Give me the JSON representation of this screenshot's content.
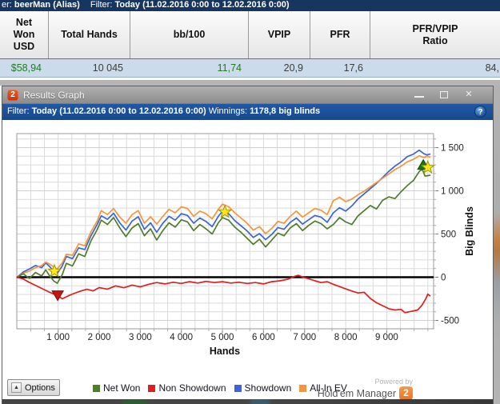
{
  "app_bar": {
    "prefix": "er:",
    "player": "beerMan (Alias)",
    "filter_label": "Filter:",
    "filter_value": "Today (11.02.2016 0:00 to 12.02.2016 0:00)"
  },
  "stats_table": {
    "headers": [
      "Net\nWon\nUSD",
      "Total Hands",
      "bb/100",
      "VPIP",
      "PFR",
      "PFR/VPIP\nRatio"
    ],
    "values": [
      {
        "text": "$58,94",
        "color": "#1e7d1e"
      },
      {
        "text": "10 045",
        "color": "#3c3c3c"
      },
      {
        "text": "11,74",
        "color": "#1e7d1e"
      },
      {
        "text": "20,9",
        "color": "#3c3c3c"
      },
      {
        "text": "17,6",
        "color": "#3c3c3c"
      },
      {
        "text": "84,",
        "color": "#3c3c3c"
      }
    ]
  },
  "window": {
    "icon_text": "2",
    "title": "Results Graph",
    "controls": {
      "minimize": "",
      "maximize": "",
      "close": "✕"
    },
    "filter_bar": {
      "label": "Filter:",
      "value": "Today (11.02.2016 0:00 to 12.02.2016 0:00)",
      "winnings_label": "Winnings:",
      "winnings_value": "1178,8 big blinds",
      "help": "?"
    }
  },
  "chart_data": {
    "type": "line",
    "xlabel": "Hands",
    "ylabel": "Big Blinds",
    "xlim": [
      0,
      10140
    ],
    "ylim": [
      -600,
      1660
    ],
    "x_ticks": [
      1000,
      2000,
      3000,
      4000,
      5000,
      6000,
      7000,
      8000,
      9000
    ],
    "y_ticks": [
      -500,
      0,
      500,
      1000,
      1500
    ],
    "grid": true,
    "legend_position": "bottom",
    "zero_line": true,
    "series": [
      {
        "name": "Showdown",
        "color": "#3a64d9",
        "points": [
          [
            0,
            0
          ],
          [
            150,
            60
          ],
          [
            300,
            95
          ],
          [
            450,
            135
          ],
          [
            600,
            110
          ],
          [
            700,
            165
          ],
          [
            800,
            120
          ],
          [
            900,
            65
          ],
          [
            980,
            45
          ],
          [
            1100,
            130
          ],
          [
            1200,
            240
          ],
          [
            1350,
            215
          ],
          [
            1500,
            340
          ],
          [
            1650,
            320
          ],
          [
            1800,
            480
          ],
          [
            1950,
            610
          ],
          [
            2050,
            710
          ],
          [
            2200,
            670
          ],
          [
            2350,
            740
          ],
          [
            2500,
            630
          ],
          [
            2650,
            545
          ],
          [
            2800,
            650
          ],
          [
            2950,
            700
          ],
          [
            3100,
            555
          ],
          [
            3250,
            630
          ],
          [
            3400,
            520
          ],
          [
            3550,
            625
          ],
          [
            3700,
            705
          ],
          [
            3850,
            660
          ],
          [
            4000,
            735
          ],
          [
            4150,
            715
          ],
          [
            4300,
            625
          ],
          [
            4450,
            685
          ],
          [
            4600,
            645
          ],
          [
            4750,
            585
          ],
          [
            4900,
            705
          ],
          [
            5000,
            765
          ],
          [
            5150,
            735
          ],
          [
            5300,
            655
          ],
          [
            5450,
            595
          ],
          [
            5600,
            535
          ],
          [
            5750,
            460
          ],
          [
            5900,
            505
          ],
          [
            6050,
            435
          ],
          [
            6200,
            495
          ],
          [
            6350,
            575
          ],
          [
            6500,
            555
          ],
          [
            6650,
            635
          ],
          [
            6800,
            685
          ],
          [
            6950,
            615
          ],
          [
            7100,
            665
          ],
          [
            7250,
            715
          ],
          [
            7400,
            695
          ],
          [
            7550,
            635
          ],
          [
            7700,
            745
          ],
          [
            7850,
            805
          ],
          [
            8000,
            765
          ],
          [
            8150,
            825
          ],
          [
            8300,
            905
          ],
          [
            8450,
            965
          ],
          [
            8600,
            1025
          ],
          [
            8750,
            1085
          ],
          [
            8900,
            1155
          ],
          [
            9050,
            1225
          ],
          [
            9200,
            1285
          ],
          [
            9350,
            1335
          ],
          [
            9500,
            1395
          ],
          [
            9650,
            1425
          ],
          [
            9790,
            1470
          ],
          [
            9900,
            1430
          ],
          [
            9980,
            1415
          ],
          [
            10050,
            1425
          ]
        ]
      },
      {
        "name": "All-In EV",
        "color": "#f5953a",
        "points": [
          [
            0,
            0
          ],
          [
            150,
            45
          ],
          [
            300,
            70
          ],
          [
            450,
            110
          ],
          [
            600,
            135
          ],
          [
            700,
            175
          ],
          [
            800,
            150
          ],
          [
            900,
            115
          ],
          [
            980,
            95
          ],
          [
            1100,
            165
          ],
          [
            1200,
            265
          ],
          [
            1350,
            255
          ],
          [
            1500,
            385
          ],
          [
            1650,
            365
          ],
          [
            1800,
            525
          ],
          [
            1950,
            650
          ],
          [
            2050,
            770
          ],
          [
            2200,
            725
          ],
          [
            2350,
            795
          ],
          [
            2500,
            695
          ],
          [
            2650,
            625
          ],
          [
            2800,
            725
          ],
          [
            2950,
            770
          ],
          [
            3100,
            625
          ],
          [
            3250,
            700
          ],
          [
            3400,
            615
          ],
          [
            3550,
            705
          ],
          [
            3700,
            785
          ],
          [
            3850,
            745
          ],
          [
            4000,
            815
          ],
          [
            4150,
            795
          ],
          [
            4300,
            705
          ],
          [
            4450,
            765
          ],
          [
            4600,
            735
          ],
          [
            4750,
            675
          ],
          [
            4900,
            785
          ],
          [
            5000,
            845
          ],
          [
            5150,
            815
          ],
          [
            5300,
            745
          ],
          [
            5450,
            685
          ],
          [
            5600,
            625
          ],
          [
            5750,
            545
          ],
          [
            5900,
            585
          ],
          [
            6050,
            505
          ],
          [
            6200,
            565
          ],
          [
            6350,
            645
          ],
          [
            6500,
            625
          ],
          [
            6650,
            705
          ],
          [
            6800,
            765
          ],
          [
            6950,
            695
          ],
          [
            7100,
            745
          ],
          [
            7250,
            795
          ],
          [
            7400,
            775
          ],
          [
            7550,
            725
          ],
          [
            7700,
            885
          ],
          [
            7850,
            925
          ],
          [
            8000,
            875
          ],
          [
            8150,
            905
          ],
          [
            8300,
            955
          ],
          [
            8450,
            995
          ],
          [
            8600,
            1045
          ],
          [
            8750,
            1095
          ],
          [
            8900,
            1145
          ],
          [
            9050,
            1195
          ],
          [
            9200,
            1245
          ],
          [
            9350,
            1285
          ],
          [
            9500,
            1335
          ],
          [
            9650,
            1365
          ],
          [
            9790,
            1405
          ],
          [
            9900,
            1385
          ],
          [
            9980,
            1400
          ],
          [
            10050,
            1390
          ]
        ]
      },
      {
        "name": "Net Won",
        "color": "#4f7d2b",
        "points": [
          [
            0,
            0
          ],
          [
            150,
            40
          ],
          [
            300,
            -15
          ],
          [
            450,
            55
          ],
          [
            600,
            15
          ],
          [
            700,
            85
          ],
          [
            800,
            10
          ],
          [
            900,
            -45
          ],
          [
            980,
            -70
          ],
          [
            1100,
            30
          ],
          [
            1200,
            160
          ],
          [
            1350,
            130
          ],
          [
            1500,
            270
          ],
          [
            1650,
            240
          ],
          [
            1800,
            420
          ],
          [
            1950,
            550
          ],
          [
            2050,
            660
          ],
          [
            2200,
            610
          ],
          [
            2350,
            690
          ],
          [
            2500,
            570
          ],
          [
            2650,
            470
          ],
          [
            2800,
            570
          ],
          [
            2950,
            620
          ],
          [
            3100,
            480
          ],
          [
            3250,
            560
          ],
          [
            3400,
            430
          ],
          [
            3550,
            540
          ],
          [
            3700,
            630
          ],
          [
            3850,
            580
          ],
          [
            4000,
            665
          ],
          [
            4150,
            640
          ],
          [
            4300,
            540
          ],
          [
            4450,
            610
          ],
          [
            4600,
            560
          ],
          [
            4750,
            500
          ],
          [
            4900,
            630
          ],
          [
            5000,
            690
          ],
          [
            5150,
            660
          ],
          [
            5300,
            580
          ],
          [
            5450,
            520
          ],
          [
            5600,
            450
          ],
          [
            5750,
            380
          ],
          [
            5900,
            440
          ],
          [
            6050,
            350
          ],
          [
            6200,
            430
          ],
          [
            6350,
            510
          ],
          [
            6500,
            480
          ],
          [
            6650,
            570
          ],
          [
            6800,
            620
          ],
          [
            6950,
            540
          ],
          [
            7100,
            600
          ],
          [
            7250,
            650
          ],
          [
            7400,
            620
          ],
          [
            7550,
            560
          ],
          [
            7700,
            610
          ],
          [
            7850,
            690
          ],
          [
            8000,
            640
          ],
          [
            8150,
            610
          ],
          [
            8300,
            710
          ],
          [
            8450,
            770
          ],
          [
            8600,
            830
          ],
          [
            8750,
            790
          ],
          [
            8900,
            890
          ],
          [
            9050,
            930
          ],
          [
            9200,
            910
          ],
          [
            9350,
            990
          ],
          [
            9500,
            1060
          ],
          [
            9650,
            1120
          ],
          [
            9800,
            1230
          ],
          [
            9870,
            1245
          ],
          [
            9930,
            1170
          ],
          [
            10050,
            1180
          ]
        ]
      },
      {
        "name": "Non Showdown",
        "color": "#e11d1d",
        "points": [
          [
            0,
            0
          ],
          [
            150,
            -20
          ],
          [
            300,
            -60
          ],
          [
            450,
            -95
          ],
          [
            600,
            -130
          ],
          [
            750,
            -165
          ],
          [
            900,
            -195
          ],
          [
            990,
            -210
          ],
          [
            1100,
            -250
          ],
          [
            1250,
            -215
          ],
          [
            1400,
            -185
          ],
          [
            1550,
            -160
          ],
          [
            1700,
            -140
          ],
          [
            1850,
            -158
          ],
          [
            2000,
            -120
          ],
          [
            2200,
            -138
          ],
          [
            2400,
            -100
          ],
          [
            2600,
            -122
          ],
          [
            2800,
            -92
          ],
          [
            3000,
            -112
          ],
          [
            3200,
            -82
          ],
          [
            3400,
            -62
          ],
          [
            3600,
            -78
          ],
          [
            3800,
            -58
          ],
          [
            4000,
            -72
          ],
          [
            4200,
            -52
          ],
          [
            4400,
            -68
          ],
          [
            4600,
            -48
          ],
          [
            4800,
            -62
          ],
          [
            5000,
            -52
          ],
          [
            5200,
            -68
          ],
          [
            5400,
            -58
          ],
          [
            5600,
            -72
          ],
          [
            5800,
            -62
          ],
          [
            6000,
            -78
          ],
          [
            6200,
            -52
          ],
          [
            6400,
            -42
          ],
          [
            6600,
            -22
          ],
          [
            6750,
            8
          ],
          [
            6850,
            22
          ],
          [
            6950,
            2
          ],
          [
            7100,
            -18
          ],
          [
            7250,
            -42
          ],
          [
            7400,
            -62
          ],
          [
            7550,
            -52
          ],
          [
            7700,
            -82
          ],
          [
            7850,
            -108
          ],
          [
            8000,
            -135
          ],
          [
            8150,
            -160
          ],
          [
            8300,
            -182
          ],
          [
            8450,
            -175
          ],
          [
            8600,
            -245
          ],
          [
            8750,
            -295
          ],
          [
            8900,
            -330
          ],
          [
            9050,
            -365
          ],
          [
            9200,
            -380
          ],
          [
            9350,
            -372
          ],
          [
            9440,
            -410
          ],
          [
            9600,
            -395
          ],
          [
            9750,
            -380
          ],
          [
            9850,
            -330
          ],
          [
            9950,
            -250
          ],
          [
            10000,
            -195
          ],
          [
            10050,
            -215
          ]
        ]
      }
    ],
    "legend_order": [
      "Net Won",
      "Non Showdown",
      "Showdown",
      "All-In EV"
    ],
    "markers": [
      {
        "type": "star",
        "hands": 910,
        "bb": 70,
        "fill": "#ffe81a",
        "stroke": "#a09400"
      },
      {
        "type": "triangle-down",
        "hands": 990,
        "bb": -205,
        "fill": "#c81414",
        "stroke": "#7d0d0d"
      },
      {
        "type": "star",
        "hands": 5060,
        "bb": 755,
        "fill": "#ffe81a",
        "stroke": "#a09400"
      },
      {
        "type": "triangle-up",
        "hands": 9890,
        "bb": 1295,
        "fill": "#157a15",
        "stroke": "#0a4b0a"
      },
      {
        "type": "star",
        "hands": 10000,
        "bb": 1270,
        "fill": "#ffe81a",
        "stroke": "#a09400"
      }
    ]
  },
  "bottom_bar": {
    "options_label": "Options",
    "options_arrow": "▲",
    "powered_by": "Powered by",
    "brand": "Hold'em Manager",
    "brand_logo": "2"
  }
}
